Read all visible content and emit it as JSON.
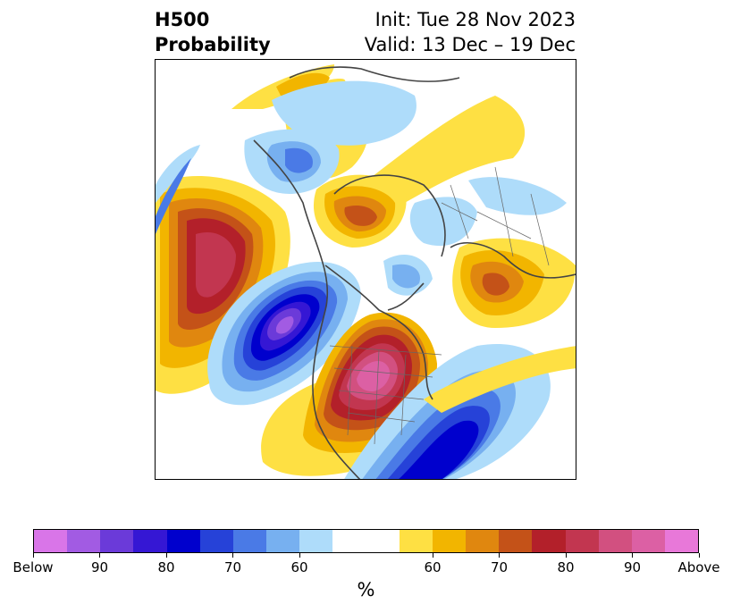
{
  "title": {
    "left_line1": "H500",
    "left_line2": "Probability",
    "right_line1": "Init: Tue 28 Nov 2023",
    "right_line2": "Valid: 13 Dec – 19 Dec"
  },
  "colorbar": {
    "colors": [
      "#d975e8",
      "#a25be3",
      "#6b3ad9",
      "#3517d4",
      "#0000cd",
      "#2642d8",
      "#4a7ae6",
      "#77b0f0",
      "#aedcfa",
      "#ffffff",
      "#ffffff",
      "#fee043",
      "#f2b500",
      "#e0870f",
      "#c45218",
      "#b3202a",
      "#c23650",
      "#d25080",
      "#dc60a4",
      "#e878d9"
    ],
    "labels": [
      "Below",
      "90",
      "80",
      "70",
      "60",
      "60",
      "70",
      "80",
      "90",
      "Above"
    ],
    "unit": "%"
  },
  "map": {
    "projection": "north-polar-stereographic",
    "legend_colors": {
      "below_strong": "#6b3ad9",
      "below_moderate": "#0000cd",
      "below_light": "#77b0f0",
      "below_weak": "#aedcfa",
      "above_weak": "#fee043",
      "above_light": "#f2b500",
      "above_moderate": "#c45218",
      "above_strong": "#b3202a",
      "above_extreme": "#dc60a4"
    }
  }
}
